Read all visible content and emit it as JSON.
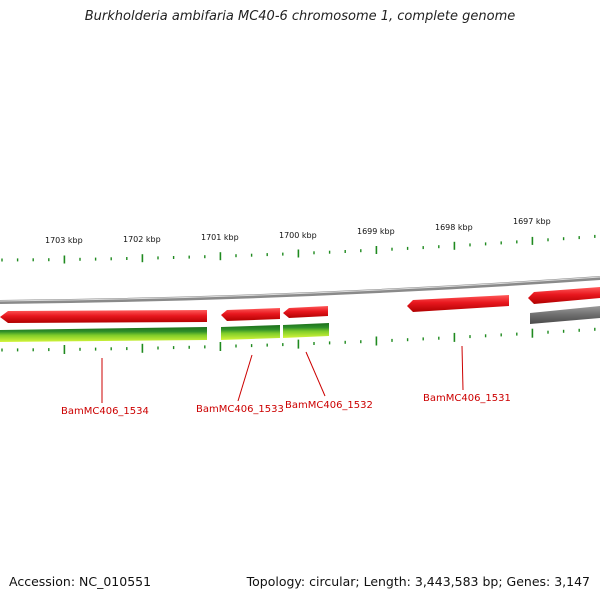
{
  "title": "Burkholderia ambifaria MC40-6 chromosome 1, complete genome",
  "accession_text": "Accession: NC_010551",
  "summary_text": "Topology: circular; Length: 3,443,583 bp; Genes: 3,147",
  "colors": {
    "gene_forward": "#e8171e",
    "gene_other": "#6e6e6e",
    "backbone": "#8a8a8a",
    "tick": "#1f8a1f",
    "label": "#cc0000",
    "track_dark": "#1f7a1f",
    "track_light": "#b8ec2a"
  },
  "scale": {
    "unit": "kbp",
    "labels": [
      "1703 kbp",
      "1702 kbp",
      "1701 kbp",
      "1700 kbp",
      "1699 kbp",
      "1698 kbp",
      "1697 kbp"
    ]
  },
  "genes": [
    {
      "name": "BamMC406_1534"
    },
    {
      "name": "BamMC406_1533"
    },
    {
      "name": "BamMC406_1532"
    },
    {
      "name": "BamMC406_1531"
    }
  ]
}
